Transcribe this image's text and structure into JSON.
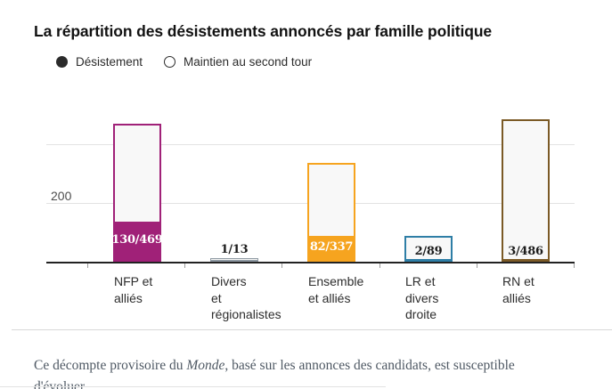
{
  "title": "La répartition des désistements annoncés par famille politique",
  "legend": [
    {
      "label": "Désistement",
      "marker": "filled-circle"
    },
    {
      "label": "Maintien au second tour",
      "marker": "open-circle"
    }
  ],
  "y_axis": {
    "tick_label": "200"
  },
  "footer": {
    "text_before_italic": "Ce décompte provisoire du ",
    "italic_word": "Monde",
    "text_after_italic": ", basé sur les annonces des candidats, est susceptible d'évoluer."
  },
  "chart_data": {
    "type": "bar",
    "title": "La répartition des désistements annoncés par famille politique",
    "categories": [
      "NFP et alliés",
      "Divers et régionalistes",
      "Ensemble et alliés",
      "LR et divers droite",
      "RN et alliés"
    ],
    "series": [
      {
        "name": "Désistement",
        "values": [
          130,
          1,
          82,
          2,
          3
        ]
      },
      {
        "name": "Maintien au second tour",
        "values": [
          339,
          12,
          255,
          87,
          483
        ]
      }
    ],
    "totals": [
      469,
      13,
      337,
      89,
      486
    ],
    "value_labels": [
      "130/469",
      "1/13",
      "82/337",
      "2/89",
      "3/486"
    ],
    "ylim": [
      0,
      486
    ],
    "gridlines": [
      200,
      400
    ],
    "ytick_labels": [
      "200"
    ],
    "legend_position": "top-left",
    "grid": "horizontal-only",
    "bars": [
      {
        "slug": "nfp",
        "label_lines": "NFP et\nalliés",
        "color": "#a02178",
        "total": 469,
        "desistement": 130,
        "ratio": "130/469",
        "ratio_placement": "in-fill",
        "ratio_color": "#ffffff",
        "border_px": 2
      },
      {
        "slug": "divers",
        "label_lines": "Divers\net\nrégionalistes",
        "color": "#8f9aa3",
        "total": 13,
        "desistement": 1,
        "ratio": "1/13",
        "ratio_placement": "above-bar",
        "ratio_color": "#1c1c1c",
        "border_px": 1
      },
      {
        "slug": "ensemble",
        "label_lines": "Ensemble\net alliés",
        "color": "#f6a41f",
        "total": 337,
        "desistement": 82,
        "ratio": "82/337",
        "ratio_placement": "in-fill",
        "ratio_color": "#ffffff",
        "border_px": 2
      },
      {
        "slug": "lr",
        "label_lines": "LR et\ndivers\ndroite",
        "color": "#2e7ea6",
        "total": 89,
        "desistement": 2,
        "ratio": "2/89",
        "ratio_placement": "bottom-inside",
        "ratio_color": "#1c1c1c",
        "border_px": 2
      },
      {
        "slug": "rn",
        "label_lines": "RN et\nalliés",
        "color": "#7b5a26",
        "total": 486,
        "desistement": 3,
        "ratio": "3/486",
        "ratio_placement": "bottom-inside",
        "ratio_color": "#1c1c1c",
        "border_px": 2
      }
    ]
  },
  "colors": {
    "axis": "#222222",
    "gridline": "#e3e3e3",
    "bar_interior": "#f8f8f8",
    "nfp": "#a02178",
    "divers": "#8f9aa3",
    "ensemble": "#f6a41f",
    "lr": "#2e7ea6",
    "rn": "#7b5a26"
  }
}
